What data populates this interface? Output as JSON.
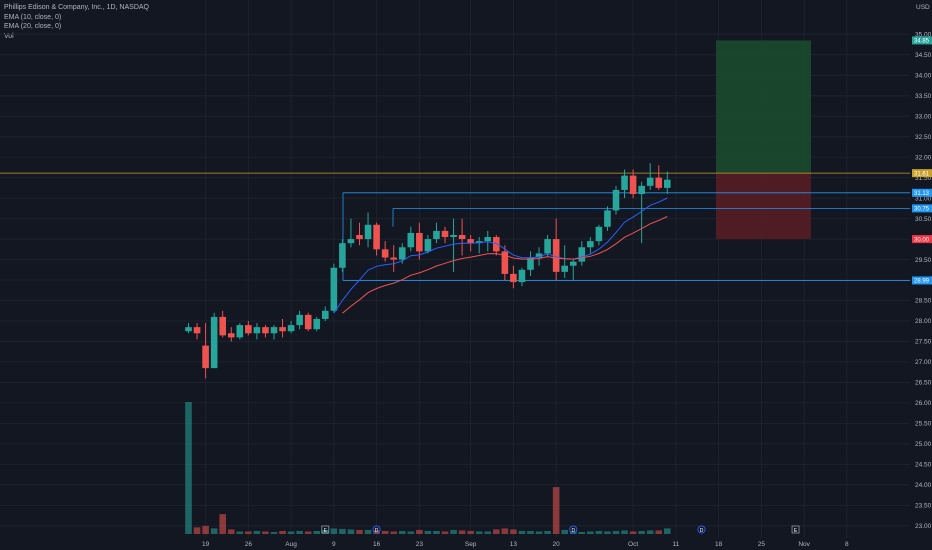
{
  "legend": {
    "symbol": "Phillips Edison & Company, Inc., 1D, NASDAQ",
    "ema10": "EMA (10, close, 0)",
    "ema20": "EMA (20, close, 0)",
    "vol": "Vol"
  },
  "colors": {
    "background": "#131722",
    "up": "#26a69a",
    "down": "#ef5350",
    "ema10": "#2962ff",
    "ema20": "#ef5350",
    "level_line": "#2196f3",
    "last_price_line": "#c9a227",
    "profit_zone": "#1b4d2e",
    "loss_zone": "#5b1d24"
  },
  "chart_data": {
    "type": "candlestick",
    "currency": "USD",
    "ylim": [
      22.8,
      35.3
    ],
    "y_ticks": [
      "35.00",
      "34.50",
      "34.00",
      "33.50",
      "33.00",
      "32.50",
      "32.00",
      "31.50",
      "31.00",
      "30.50",
      "30.00",
      "29.50",
      "29.00",
      "28.50",
      "28.00",
      "27.50",
      "27.00",
      "26.50",
      "26.00",
      "25.50",
      "25.00",
      "24.50",
      "24.00",
      "23.50",
      "23.00"
    ],
    "x_ticks": [
      {
        "label": "19",
        "bar": 2
      },
      {
        "label": "26",
        "bar": 7
      },
      {
        "label": "Aug",
        "bar": 12
      },
      {
        "label": "9",
        "bar": 17
      },
      {
        "label": "16",
        "bar": 22
      },
      {
        "label": "23",
        "bar": 27
      },
      {
        "label": "Sep",
        "bar": 33
      },
      {
        "label": "13",
        "bar": 38
      },
      {
        "label": "20",
        "bar": 43
      },
      {
        "label": "Oct",
        "bar": 52
      },
      {
        "label": "11",
        "bar": 57
      },
      {
        "label": "18",
        "bar": 62
      },
      {
        "label": "25",
        "bar": 67
      },
      {
        "label": "Nov",
        "bar": 72
      },
      {
        "label": "8",
        "bar": 77
      }
    ],
    "candles": [
      [
        27.75,
        27.95,
        27.7,
        27.85,
        25.9
      ],
      [
        27.85,
        27.95,
        27.55,
        27.7,
        1.3
      ],
      [
        27.4,
        27.95,
        26.6,
        26.85,
        1.6
      ],
      [
        26.85,
        28.2,
        26.85,
        28.1,
        1.1
      ],
      [
        28.1,
        28.25,
        27.6,
        27.65,
        3.9
      ],
      [
        27.7,
        27.85,
        27.5,
        27.6,
        0.9
      ],
      [
        27.6,
        27.95,
        27.55,
        27.9,
        0.5
      ],
      [
        27.9,
        28.0,
        27.65,
        27.7,
        0.5
      ],
      [
        27.7,
        27.95,
        27.55,
        27.85,
        0.6
      ],
      [
        27.85,
        27.9,
        27.6,
        27.7,
        0.5
      ],
      [
        27.7,
        27.9,
        27.55,
        27.85,
        0.4
      ],
      [
        27.85,
        28.05,
        27.6,
        27.75,
        0.6
      ],
      [
        27.75,
        28.0,
        27.7,
        27.9,
        0.5
      ],
      [
        27.9,
        28.25,
        27.8,
        28.15,
        0.6
      ],
      [
        28.15,
        28.2,
        27.75,
        27.8,
        0.5
      ],
      [
        27.8,
        28.1,
        27.75,
        28.05,
        0.6
      ],
      [
        28.05,
        28.35,
        28.0,
        28.25,
        0.8
      ],
      [
        28.25,
        29.4,
        28.2,
        29.3,
        1.1
      ],
      [
        29.3,
        30.0,
        29.2,
        29.9,
        1.0
      ],
      [
        29.9,
        30.5,
        29.8,
        30.0,
        0.9
      ],
      [
        30.1,
        30.4,
        29.85,
        30.0,
        0.8
      ],
      [
        30.0,
        30.65,
        29.8,
        30.35,
        0.8
      ],
      [
        30.35,
        30.4,
        29.6,
        29.75,
        0.7
      ],
      [
        29.75,
        29.95,
        29.45,
        29.55,
        0.6
      ],
      [
        29.55,
        29.85,
        29.2,
        29.5,
        0.5
      ],
      [
        29.5,
        29.9,
        29.4,
        29.8,
        0.6
      ],
      [
        29.8,
        30.3,
        29.7,
        30.15,
        0.5
      ],
      [
        30.15,
        30.4,
        29.5,
        29.7,
        0.8
      ],
      [
        29.7,
        30.1,
        29.65,
        30.0,
        0.6
      ],
      [
        30.0,
        30.4,
        29.9,
        30.2,
        0.6
      ],
      [
        30.2,
        30.3,
        29.9,
        30.05,
        0.5
      ],
      [
        30.05,
        30.5,
        29.2,
        30.1,
        0.8
      ],
      [
        30.1,
        30.5,
        29.6,
        30.0,
        0.7
      ],
      [
        30.0,
        30.1,
        29.7,
        29.9,
        0.6
      ],
      [
        29.9,
        30.05,
        29.65,
        29.95,
        0.5
      ],
      [
        29.95,
        30.2,
        29.7,
        30.05,
        0.5
      ],
      [
        30.05,
        30.1,
        29.6,
        29.7,
        0.9
      ],
      [
        29.7,
        29.85,
        29.0,
        29.15,
        1.1
      ],
      [
        29.15,
        29.35,
        28.8,
        28.95,
        0.9
      ],
      [
        28.95,
        29.3,
        28.85,
        29.25,
        0.6
      ],
      [
        29.25,
        29.7,
        29.1,
        29.55,
        0.6
      ],
      [
        29.55,
        29.8,
        29.35,
        29.65,
        0.5
      ],
      [
        29.65,
        30.1,
        29.55,
        30.0,
        0.6
      ],
      [
        30.0,
        30.5,
        29.0,
        29.2,
        9.2
      ],
      [
        29.2,
        29.85,
        29.05,
        29.35,
        0.8
      ],
      [
        29.35,
        29.5,
        29.0,
        29.45,
        0.5
      ],
      [
        29.45,
        29.95,
        29.35,
        29.8,
        0.4
      ],
      [
        29.8,
        30.05,
        29.65,
        29.95,
        0.5
      ],
      [
        29.95,
        30.35,
        29.85,
        30.3,
        0.6
      ],
      [
        30.3,
        30.8,
        30.2,
        30.7,
        0.5
      ],
      [
        30.7,
        31.3,
        30.6,
        31.2,
        0.6
      ],
      [
        31.2,
        31.7,
        31.0,
        31.55,
        0.7
      ],
      [
        31.55,
        31.7,
        31.0,
        31.1,
        0.5
      ],
      [
        31.1,
        31.4,
        29.9,
        31.3,
        0.6
      ],
      [
        31.3,
        31.85,
        31.2,
        31.5,
        0.7
      ],
      [
        31.5,
        31.8,
        31.2,
        31.25,
        0.7
      ],
      [
        31.25,
        31.65,
        31.1,
        31.45,
        1.1
      ]
    ],
    "levels": [
      {
        "price": 31.13,
        "label": "31.13"
      },
      {
        "price": 30.75,
        "label": "30.75"
      },
      {
        "price": 28.99,
        "label": "28.99"
      }
    ],
    "last_price": {
      "price": 31.61,
      "label": "31.61"
    },
    "position": {
      "target": {
        "price": 34.85,
        "label": "34.85"
      },
      "entry": {
        "price": 31.61,
        "label": "31.61"
      },
      "stop": {
        "price": 30.0,
        "label": "30.00"
      }
    },
    "events": [
      {
        "type": "E",
        "bar": 16
      },
      {
        "type": "D",
        "bar": 22
      },
      {
        "type": "D",
        "bar": 45
      },
      {
        "type": "D",
        "bar": 60
      },
      {
        "type": "E",
        "bar": 71
      }
    ]
  }
}
